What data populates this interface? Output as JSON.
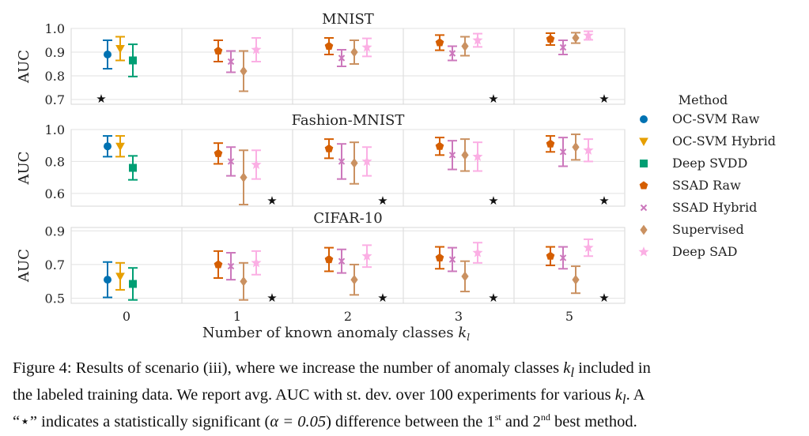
{
  "figure": {
    "xlabel_text": "Number of known anomaly classes ",
    "xlabel_var": "k",
    "xlabel_sub": "l",
    "legend_title": "Method"
  },
  "caption": {
    "line1_a": "Figure 4: Results of scenario (iii), where we increase the number of anomaly classes ",
    "line1_var": "k",
    "line1_sub": "l",
    "line1_b": " included in",
    "line2_a": "the labeled training data. We report avg. AUC with st. dev. over 100 experiments for various ",
    "line2_var": "k",
    "line2_sub": "l",
    "line2_b": ". A",
    "line3_a": "“⋆” indicates a statistically significant (",
    "line3_alpha": "α = 0.05",
    "line3_b": ") difference between the 1",
    "line3_st": "st",
    "line3_c": " and 2",
    "line3_nd": "nd",
    "line3_d": " best method."
  },
  "chart_data": {
    "type": "errorbar",
    "x_groups": [
      "0",
      "1",
      "2",
      "3",
      "5"
    ],
    "series": [
      {
        "name": "OC-SVM Raw",
        "color": "#0072b2",
        "marker": "circle"
      },
      {
        "name": "OC-SVM Hybrid",
        "color": "#e69f00",
        "marker": "triangle-down"
      },
      {
        "name": "Deep SVDD",
        "color": "#009e73",
        "marker": "square"
      },
      {
        "name": "SSAD Raw",
        "color": "#d55e00",
        "marker": "pentagon"
      },
      {
        "name": "SSAD Hybrid",
        "color": "#cc78bc",
        "marker": "x"
      },
      {
        "name": "Supervised",
        "color": "#ca9161",
        "marker": "diamond"
      },
      {
        "name": "Deep SAD",
        "color": "#fbafe4",
        "marker": "star"
      }
    ],
    "panels": [
      {
        "title": "MNIST",
        "ylabel": "AUC",
        "ylim": [
          0.68,
          1.0
        ],
        "yticks": [
          0.7,
          0.8,
          0.9,
          1.0
        ],
        "ytick_labels": [
          "0.7",
          "0.8",
          "0.9",
          "1.0"
        ],
        "points": {
          "0": {
            "OC-SVM Raw": [
              0.89,
              0.06
            ],
            "OC-SVM Hybrid": [
              0.915,
              0.05
            ],
            "Deep SVDD": [
              0.865,
              0.068
            ]
          },
          "1": {
            "SSAD Raw": [
              0.905,
              0.045
            ],
            "SSAD Hybrid": [
              0.86,
              0.045
            ],
            "Supervised": [
              0.82,
              0.085
            ],
            "Deep SAD": [
              0.91,
              0.05
            ]
          },
          "2": {
            "SSAD Raw": [
              0.925,
              0.035
            ],
            "SSAD Hybrid": [
              0.875,
              0.035
            ],
            "Supervised": [
              0.9,
              0.05
            ],
            "Deep SAD": [
              0.92,
              0.038
            ]
          },
          "3": {
            "SSAD Raw": [
              0.94,
              0.032
            ],
            "SSAD Hybrid": [
              0.895,
              0.03
            ],
            "Supervised": [
              0.925,
              0.04
            ],
            "Deep SAD": [
              0.95,
              0.028
            ]
          },
          "5": {
            "SSAD Raw": [
              0.955,
              0.025
            ],
            "SSAD Hybrid": [
              0.92,
              0.03
            ],
            "Supervised": [
              0.96,
              0.022
            ],
            "Deep SAD": [
              0.97,
              0.018
            ]
          }
        },
        "stars": [
          "0",
          "3",
          "5"
        ]
      },
      {
        "title": "Fashion-MNIST",
        "ylabel": "AUC",
        "ylim": [
          0.52,
          1.0
        ],
        "yticks": [
          0.6,
          0.8,
          1.0
        ],
        "ytick_labels": [
          "0.6",
          "0.8",
          "1.0"
        ],
        "points": {
          "0": {
            "OC-SVM Raw": [
              0.895,
              0.065
            ],
            "OC-SVM Hybrid": [
              0.895,
              0.065
            ],
            "Deep SVDD": [
              0.76,
              0.075
            ]
          },
          "1": {
            "SSAD Raw": [
              0.85,
              0.065
            ],
            "SSAD Hybrid": [
              0.8,
              0.09
            ],
            "Supervised": [
              0.7,
              0.17
            ],
            "Deep SAD": [
              0.78,
              0.09
            ]
          },
          "2": {
            "SSAD Raw": [
              0.88,
              0.06
            ],
            "SSAD Hybrid": [
              0.8,
              0.11
            ],
            "Supervised": [
              0.79,
              0.13
            ],
            "Deep SAD": [
              0.8,
              0.09
            ]
          },
          "3": {
            "SSAD Raw": [
              0.895,
              0.055
            ],
            "SSAD Hybrid": [
              0.84,
              0.09
            ],
            "Supervised": [
              0.84,
              0.1
            ],
            "Deep SAD": [
              0.83,
              0.09
            ]
          },
          "5": {
            "SSAD Raw": [
              0.91,
              0.05
            ],
            "SSAD Hybrid": [
              0.86,
              0.09
            ],
            "Supervised": [
              0.89,
              0.08
            ],
            "Deep SAD": [
              0.87,
              0.07
            ]
          }
        },
        "stars": [
          "1",
          "2",
          "3",
          "5"
        ]
      },
      {
        "title": "CIFAR-10",
        "ylabel": "AUC",
        "ylim": [
          0.47,
          0.92
        ],
        "yticks": [
          0.5,
          0.7,
          0.9
        ],
        "ytick_labels": [
          "0.5",
          "0.7",
          "0.9"
        ],
        "points": {
          "0": {
            "OC-SVM Raw": [
              0.61,
              0.105
            ],
            "OC-SVM Hybrid": [
              0.63,
              0.08
            ],
            "Deep SVDD": [
              0.585,
              0.095
            ]
          },
          "1": {
            "SSAD Raw": [
              0.7,
              0.08
            ],
            "SSAD Hybrid": [
              0.69,
              0.08
            ],
            "Supervised": [
              0.6,
              0.11
            ],
            "Deep SAD": [
              0.71,
              0.07
            ]
          },
          "2": {
            "SSAD Raw": [
              0.73,
              0.07
            ],
            "SSAD Hybrid": [
              0.72,
              0.07
            ],
            "Supervised": [
              0.61,
              0.09
            ],
            "Deep SAD": [
              0.75,
              0.065
            ]
          },
          "3": {
            "SSAD Raw": [
              0.74,
              0.065
            ],
            "SSAD Hybrid": [
              0.73,
              0.07
            ],
            "Supervised": [
              0.63,
              0.09
            ],
            "Deep SAD": [
              0.77,
              0.06
            ]
          },
          "5": {
            "SSAD Raw": [
              0.75,
              0.055
            ],
            "SSAD Hybrid": [
              0.74,
              0.065
            ],
            "Supervised": [
              0.61,
              0.08
            ],
            "Deep SAD": [
              0.8,
              0.05
            ]
          }
        },
        "stars": [
          "1",
          "2",
          "3",
          "5"
        ]
      }
    ],
    "star_label": "★"
  }
}
